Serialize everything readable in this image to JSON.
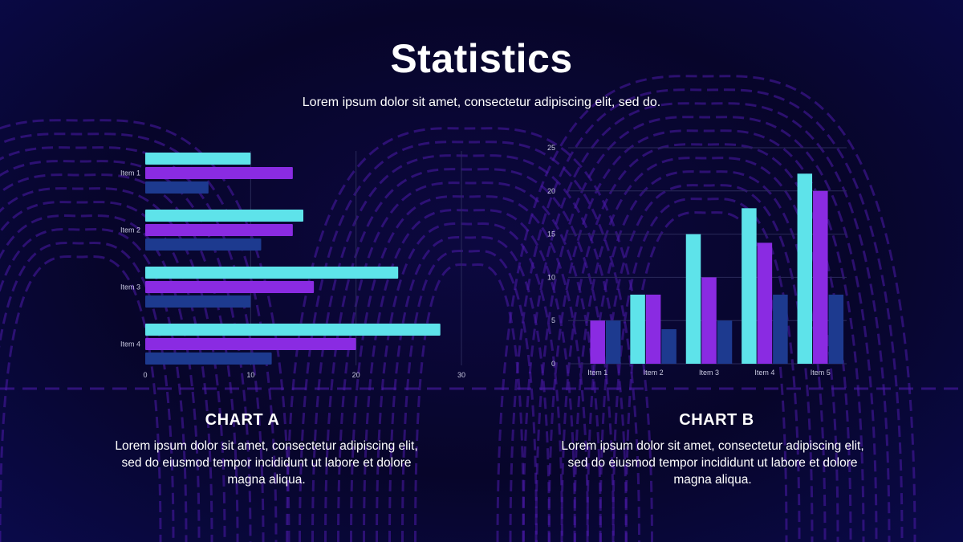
{
  "slide": {
    "title": "Statistics",
    "subtitle": "Lorem ipsum dolor sit amet, consectetur adipiscing elit, sed do."
  },
  "colors": {
    "cyan": "#5ee3ea",
    "purple": "#8a2be2",
    "navy": "#1d3a8f",
    "background": "#07052a",
    "pattern": "#4a1aa8"
  },
  "charts_text": {
    "a": {
      "heading": "CHART A",
      "description": "Lorem ipsum dolor sit amet, consectetur adipiscing elit, sed do eiusmod tempor incididunt ut labore et dolore magna aliqua."
    },
    "b": {
      "heading": "CHART B",
      "description": "Lorem ipsum dolor sit amet, consectetur adipiscing elit, sed do eiusmod tempor incididunt ut labore et dolore magna aliqua."
    }
  },
  "chart_data": [
    {
      "type": "bar",
      "orientation": "horizontal",
      "categories": [
        "Item 1",
        "Item 2",
        "Item 3",
        "Item 4"
      ],
      "series": [
        {
          "values": [
            10,
            15,
            24,
            28
          ]
        },
        {
          "values": [
            14,
            14,
            16,
            20
          ]
        },
        {
          "values": [
            6,
            11,
            10,
            12
          ]
        }
      ],
      "xlim": [
        0,
        30
      ],
      "xticks": [
        0,
        10,
        20,
        30
      ],
      "grid": "vertical"
    },
    {
      "type": "bar",
      "orientation": "vertical",
      "categories": [
        "Item 1",
        "Item 2",
        "Item 3",
        "Item 4",
        "Item 5"
      ],
      "series": [
        {
          "values": [
            0,
            8,
            15,
            18,
            22
          ]
        },
        {
          "values": [
            5,
            8,
            10,
            14,
            20
          ]
        },
        {
          "values": [
            5,
            4,
            5,
            8,
            8
          ]
        }
      ],
      "ylim": [
        0,
        25
      ],
      "yticks": [
        0,
        5,
        10,
        15,
        20,
        25
      ],
      "grid": "horizontal"
    }
  ]
}
